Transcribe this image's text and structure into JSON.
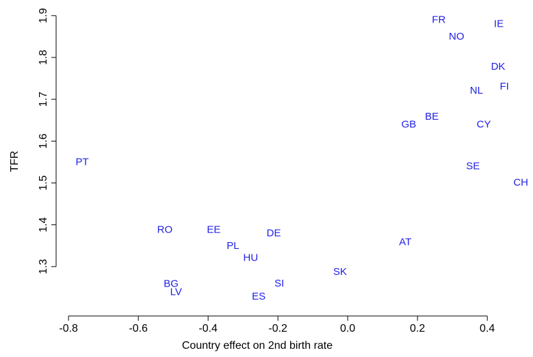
{
  "chart_data": {
    "type": "scatter",
    "xlabel": "Country effect on 2nd birth rate",
    "ylabel": "TFR",
    "labels": [
      "FR",
      "IE",
      "NO",
      "DK",
      "FI",
      "NL",
      "BE",
      "GB",
      "CY",
      "PT",
      "SE",
      "CH",
      "RO",
      "EE",
      "DE",
      "PL",
      "AT",
      "HU",
      "SK",
      "BG",
      "SI",
      "LV",
      "ES"
    ],
    "x": [
      0.261,
      0.433,
      0.312,
      0.431,
      0.449,
      0.369,
      0.241,
      0.175,
      0.39,
      -0.761,
      0.359,
      0.496,
      -0.524,
      -0.384,
      -0.212,
      -0.329,
      0.165,
      -0.278,
      -0.022,
      -0.506,
      -0.196,
      -0.492,
      -0.255
    ],
    "y": [
      1.889,
      1.879,
      1.849,
      1.777,
      1.73,
      1.72,
      1.658,
      1.639,
      1.639,
      1.549,
      1.539,
      1.5,
      1.387,
      1.387,
      1.379,
      1.349,
      1.358,
      1.32,
      1.287,
      1.258,
      1.259,
      1.238,
      1.228
    ],
    "color": "#2020e6",
    "xlim": [
      -0.816,
      0.531
    ],
    "ylim": [
      1.2,
      1.921
    ],
    "xticks": [
      -0.8,
      -0.6,
      -0.4,
      -0.2,
      {
        "value": 0,
        "label": "0.0"
      },
      0.2,
      0.4
    ],
    "yticks": [
      1.3,
      1.4,
      1.5,
      1.6,
      1.7,
      1.8,
      1.9
    ]
  }
}
